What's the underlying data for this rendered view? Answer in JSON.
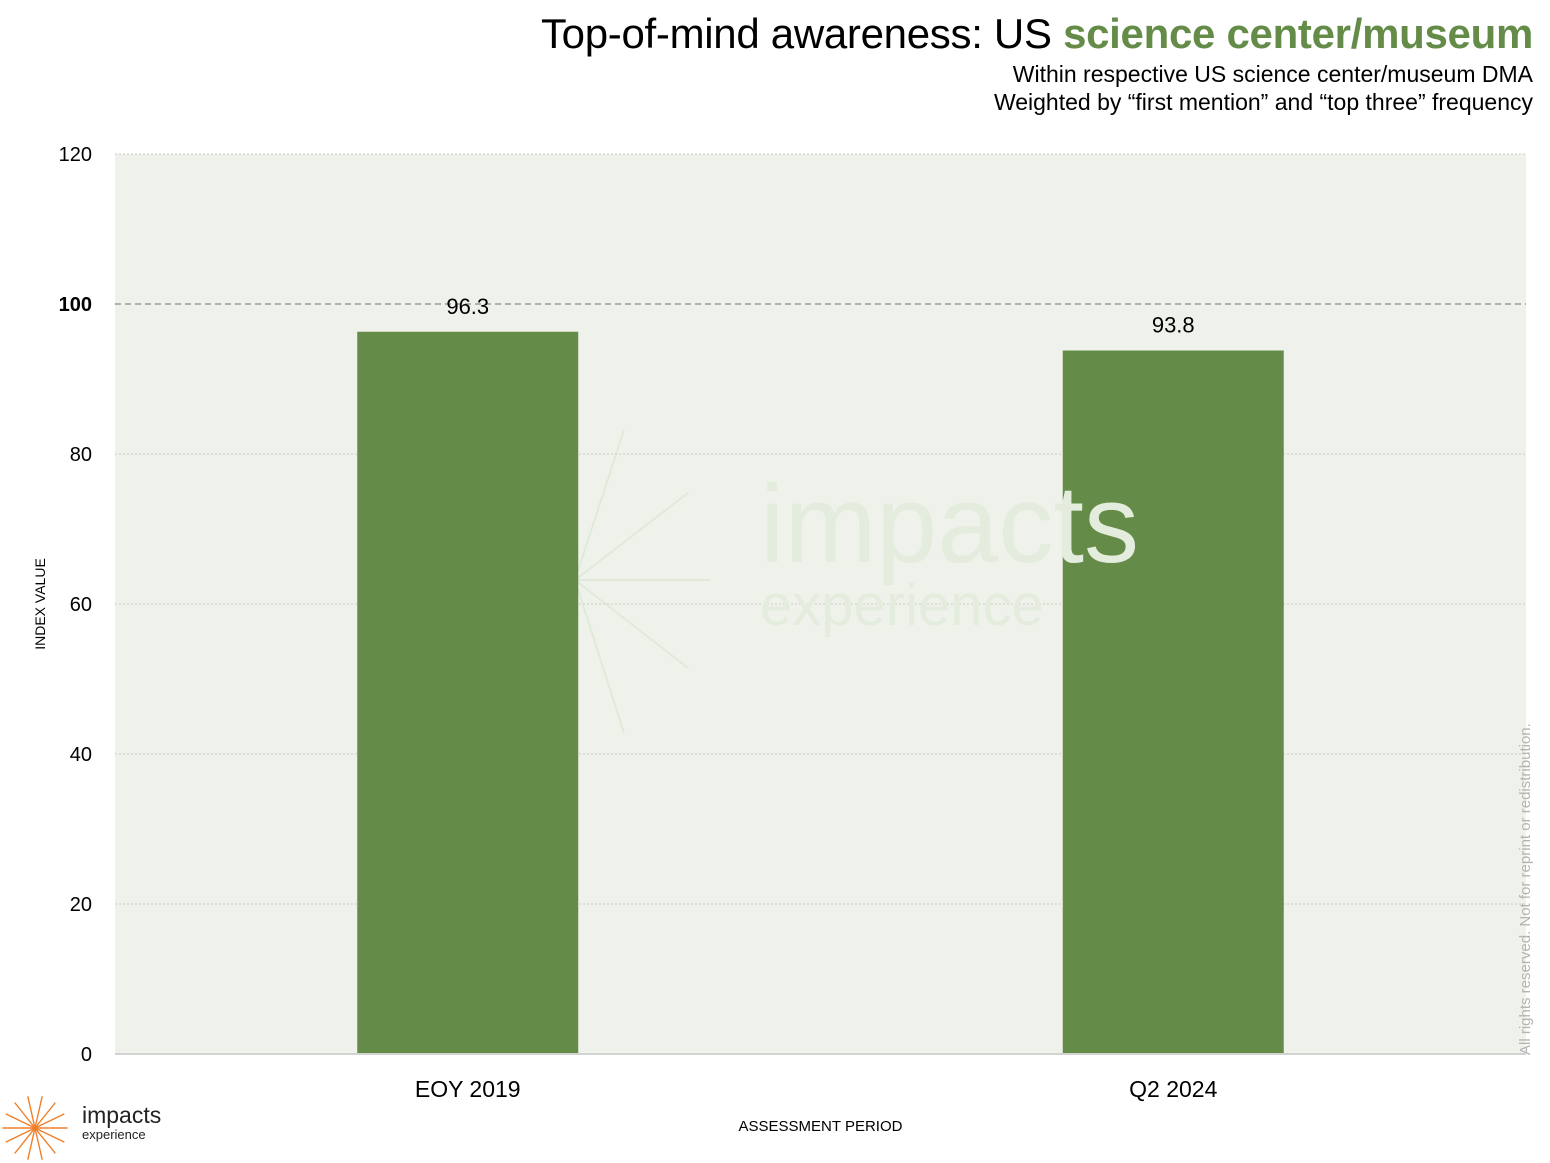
{
  "title": {
    "prefix": "Top-of-mind awareness: US ",
    "highlight": "science center/museum",
    "highlight_color": "#648c48"
  },
  "subtitle": {
    "line1": "Within respective US science center/museum DMA",
    "line2": "Weighted by “first mention” and “top three” frequency"
  },
  "watermark": {
    "word1": "impacts",
    "word2": "experience"
  },
  "rights_notice": "All rights reserved. Not for reprint or redistribution.",
  "logo": {
    "word1": "impacts",
    "word2": "experience",
    "icon": "sunburst-icon",
    "color": "#f07f2a"
  },
  "chart_data": {
    "type": "bar",
    "categories": [
      "EOY 2019",
      "Q2 2024"
    ],
    "values": [
      96.3,
      93.8
    ],
    "data_labels": [
      "96.3",
      "93.8"
    ],
    "xlabel": "ASSESSMENT PERIOD",
    "ylabel": "INDEX VALUE",
    "ylim": [
      0,
      120
    ],
    "yticks": [
      0,
      20,
      40,
      60,
      80,
      100,
      120
    ],
    "reference_line": 100,
    "bar_color": "#648c48",
    "plot_background": "#eff2eb",
    "grid": true
  }
}
